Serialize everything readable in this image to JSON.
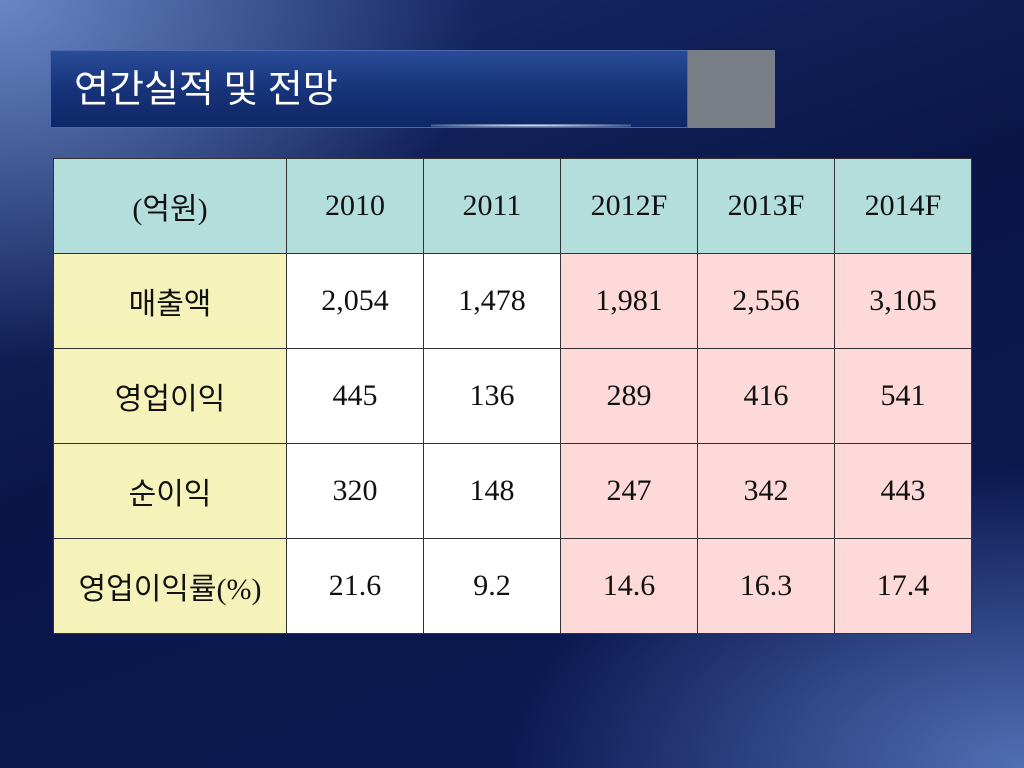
{
  "header": {
    "title": "연간실적 및 전망"
  },
  "table": {
    "columns": [
      "(억원)",
      "2010",
      "2011",
      "2012F",
      "2013F",
      "2014F"
    ],
    "rows": [
      [
        "매출액",
        "2,054",
        "1,478",
        "1,981",
        "2,556",
        "3,105"
      ],
      [
        "영업이익",
        "445",
        "136",
        "289",
        "416",
        "541"
      ],
      [
        "순이익",
        "320",
        "148",
        "247",
        "342",
        "443"
      ],
      [
        "영업이익률(%)",
        "21.6",
        "9.2",
        "14.6",
        "16.3",
        "17.4"
      ]
    ]
  }
}
